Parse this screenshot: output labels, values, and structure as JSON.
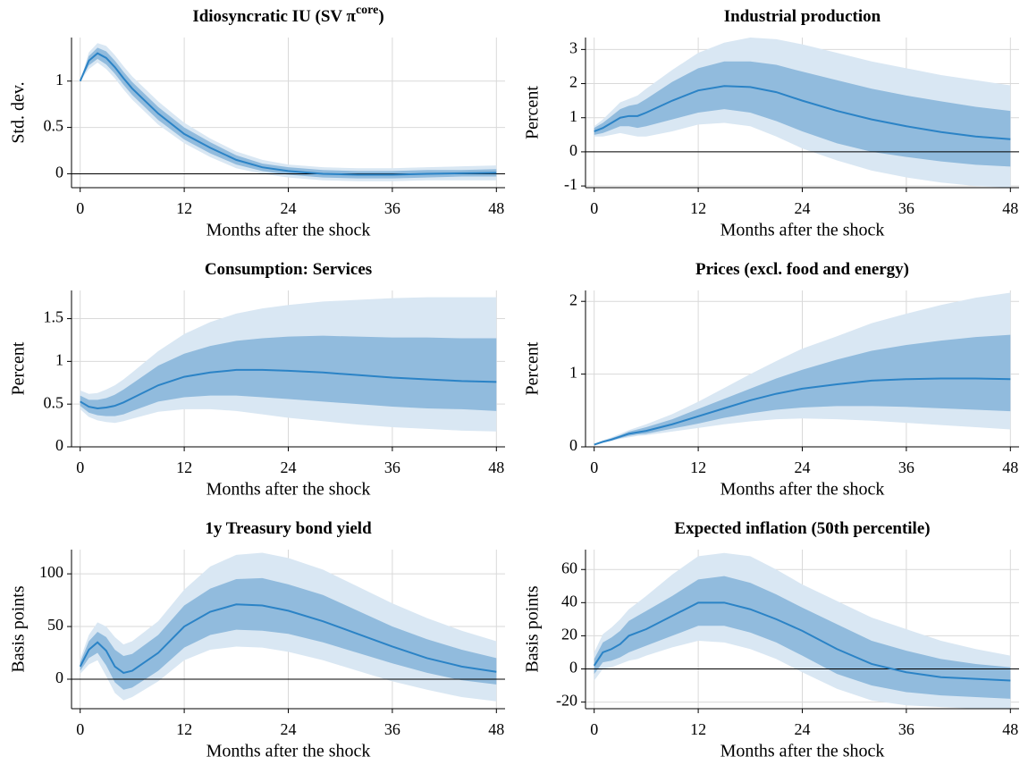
{
  "chart_data": [
    {
      "type": "line",
      "title": "Idiosyncratic IU (SV π",
      "title_sup": "core",
      "title_end": ")",
      "ylabel": "Std. dev.",
      "xlabel": "Months after the shock",
      "x": [
        0,
        1,
        2,
        3,
        4,
        5,
        6,
        9,
        12,
        15,
        18,
        21,
        24,
        28,
        32,
        36,
        40,
        44,
        48
      ],
      "xlim": [
        -1,
        49
      ],
      "xticks": [
        0,
        12,
        24,
        36,
        48
      ],
      "ylim": [
        -0.15,
        1.47
      ],
      "yticks": [
        0,
        0.5,
        1
      ],
      "grid": true,
      "zeroline": true,
      "bands": [
        {
          "color": "#d9e7f3",
          "lower": [
            1.0,
            1.13,
            1.2,
            1.13,
            1.03,
            0.91,
            0.8,
            0.53,
            0.33,
            0.18,
            0.06,
            0.0,
            -0.04,
            -0.07,
            -0.08,
            -0.08,
            -0.07,
            -0.07,
            -0.07
          ],
          "upper": [
            1.0,
            1.31,
            1.41,
            1.38,
            1.28,
            1.16,
            1.05,
            0.78,
            0.55,
            0.38,
            0.24,
            0.15,
            0.1,
            0.07,
            0.06,
            0.06,
            0.07,
            0.08,
            0.09
          ]
        },
        {
          "color": "#91bbdd",
          "lower": [
            1.0,
            1.17,
            1.24,
            1.18,
            1.08,
            0.96,
            0.85,
            0.58,
            0.37,
            0.22,
            0.1,
            0.03,
            -0.01,
            -0.04,
            -0.05,
            -0.05,
            -0.04,
            -0.03,
            -0.03
          ],
          "upper": [
            1.0,
            1.27,
            1.36,
            1.32,
            1.22,
            1.1,
            0.99,
            0.72,
            0.5,
            0.34,
            0.2,
            0.11,
            0.07,
            0.04,
            0.03,
            0.03,
            0.04,
            0.04,
            0.05
          ]
        }
      ],
      "series": [
        {
          "color": "#2b83c6",
          "values": [
            1.0,
            1.22,
            1.3,
            1.25,
            1.15,
            1.03,
            0.92,
            0.65,
            0.43,
            0.28,
            0.15,
            0.07,
            0.03,
            0.0,
            -0.01,
            -0.01,
            0.0,
            0.005,
            0.01
          ]
        }
      ]
    },
    {
      "type": "line",
      "title": "Industrial production",
      "ylabel": "Percent",
      "xlabel": "Months after the shock",
      "x": [
        0,
        1,
        2,
        3,
        4,
        5,
        6,
        9,
        12,
        15,
        18,
        21,
        24,
        28,
        32,
        36,
        40,
        44,
        48
      ],
      "xlim": [
        -1,
        49
      ],
      "xticks": [
        0,
        12,
        24,
        36,
        48
      ],
      "ylim": [
        -1.05,
        3.35
      ],
      "yticks": [
        -1,
        0,
        1,
        2,
        3
      ],
      "grid": true,
      "zeroline": true,
      "bands": [
        {
          "color": "#d9e7f3",
          "lower": [
            0.45,
            0.45,
            0.5,
            0.55,
            0.5,
            0.45,
            0.45,
            0.6,
            0.8,
            0.85,
            0.75,
            0.45,
            0.1,
            -0.25,
            -0.55,
            -0.75,
            -0.9,
            -1.0,
            -1.05
          ],
          "upper": [
            0.75,
            0.95,
            1.2,
            1.45,
            1.55,
            1.65,
            1.85,
            2.4,
            2.9,
            3.2,
            3.35,
            3.3,
            3.15,
            2.9,
            2.65,
            2.45,
            2.25,
            2.1,
            1.95
          ]
        },
        {
          "color": "#91bbdd",
          "lower": [
            0.5,
            0.55,
            0.65,
            0.75,
            0.75,
            0.7,
            0.75,
            0.95,
            1.15,
            1.25,
            1.15,
            0.9,
            0.6,
            0.25,
            0.0,
            -0.15,
            -0.28,
            -0.38,
            -0.43
          ],
          "upper": [
            0.7,
            0.85,
            1.05,
            1.25,
            1.35,
            1.4,
            1.55,
            2.05,
            2.45,
            2.65,
            2.65,
            2.55,
            2.35,
            2.1,
            1.85,
            1.65,
            1.48,
            1.32,
            1.2
          ]
        }
      ],
      "series": [
        {
          "color": "#2b83c6",
          "values": [
            0.6,
            0.7,
            0.85,
            1.0,
            1.05,
            1.05,
            1.15,
            1.5,
            1.8,
            1.93,
            1.9,
            1.75,
            1.5,
            1.2,
            0.95,
            0.75,
            0.58,
            0.45,
            0.37
          ]
        }
      ]
    },
    {
      "type": "line",
      "title": "Consumption: Services",
      "ylabel": "Percent",
      "xlabel": "Months after the shock",
      "x": [
        0,
        1,
        2,
        3,
        4,
        5,
        6,
        9,
        12,
        15,
        18,
        21,
        24,
        28,
        32,
        36,
        40,
        44,
        48
      ],
      "xlim": [
        -1,
        49
      ],
      "xticks": [
        0,
        12,
        24,
        36,
        48
      ],
      "ylim": [
        0,
        1.83
      ],
      "yticks": [
        0,
        0.5,
        1,
        1.5
      ],
      "grid": true,
      "zeroline": true,
      "bands": [
        {
          "color": "#d9e7f3",
          "lower": [
            0.44,
            0.35,
            0.31,
            0.29,
            0.28,
            0.3,
            0.33,
            0.41,
            0.44,
            0.44,
            0.42,
            0.38,
            0.34,
            0.3,
            0.26,
            0.23,
            0.21,
            0.19,
            0.18
          ],
          "upper": [
            0.66,
            0.62,
            0.63,
            0.67,
            0.72,
            0.79,
            0.87,
            1.12,
            1.32,
            1.46,
            1.56,
            1.62,
            1.66,
            1.7,
            1.72,
            1.74,
            1.75,
            1.75,
            1.75
          ]
        },
        {
          "color": "#91bbdd",
          "lower": [
            0.48,
            0.4,
            0.37,
            0.36,
            0.36,
            0.38,
            0.42,
            0.53,
            0.58,
            0.6,
            0.6,
            0.58,
            0.56,
            0.53,
            0.5,
            0.47,
            0.45,
            0.44,
            0.42
          ],
          "upper": [
            0.6,
            0.55,
            0.55,
            0.57,
            0.61,
            0.67,
            0.74,
            0.95,
            1.09,
            1.18,
            1.24,
            1.27,
            1.29,
            1.3,
            1.29,
            1.28,
            1.28,
            1.27,
            1.27
          ]
        }
      ],
      "series": [
        {
          "color": "#2b83c6",
          "values": [
            0.53,
            0.47,
            0.45,
            0.46,
            0.48,
            0.52,
            0.57,
            0.72,
            0.82,
            0.87,
            0.9,
            0.9,
            0.89,
            0.87,
            0.84,
            0.81,
            0.79,
            0.77,
            0.76
          ]
        }
      ]
    },
    {
      "type": "line",
      "title": "Prices (excl. food and energy)",
      "ylabel": "Percent",
      "xlabel": "Months after the shock",
      "x": [
        0,
        1,
        2,
        3,
        4,
        5,
        6,
        9,
        12,
        15,
        18,
        21,
        24,
        28,
        32,
        36,
        40,
        44,
        48
      ],
      "xlim": [
        -1,
        49
      ],
      "xticks": [
        0,
        12,
        24,
        36,
        48
      ],
      "ylim": [
        0,
        2.15
      ],
      "yticks": [
        0,
        1,
        2
      ],
      "grid": true,
      "zeroline": true,
      "bands": [
        {
          "color": "#d9e7f3",
          "lower": [
            0.02,
            0.05,
            0.08,
            0.11,
            0.13,
            0.15,
            0.16,
            0.21,
            0.26,
            0.31,
            0.35,
            0.38,
            0.39,
            0.38,
            0.36,
            0.33,
            0.3,
            0.27,
            0.24
          ],
          "upper": [
            0.04,
            0.09,
            0.13,
            0.18,
            0.23,
            0.27,
            0.31,
            0.45,
            0.62,
            0.81,
            1.0,
            1.18,
            1.35,
            1.52,
            1.7,
            1.83,
            1.95,
            2.05,
            2.12
          ]
        },
        {
          "color": "#91bbdd",
          "lower": [
            0.03,
            0.06,
            0.09,
            0.12,
            0.15,
            0.17,
            0.18,
            0.25,
            0.32,
            0.4,
            0.46,
            0.51,
            0.54,
            0.56,
            0.56,
            0.55,
            0.53,
            0.51,
            0.49
          ],
          "upper": [
            0.03,
            0.08,
            0.12,
            0.16,
            0.21,
            0.24,
            0.27,
            0.38,
            0.52,
            0.66,
            0.8,
            0.94,
            1.06,
            1.2,
            1.32,
            1.4,
            1.46,
            1.51,
            1.54
          ]
        }
      ],
      "series": [
        {
          "color": "#2b83c6",
          "values": [
            0.03,
            0.07,
            0.1,
            0.14,
            0.18,
            0.2,
            0.22,
            0.31,
            0.42,
            0.53,
            0.64,
            0.73,
            0.8,
            0.86,
            0.91,
            0.93,
            0.94,
            0.94,
            0.93
          ]
        }
      ]
    },
    {
      "type": "line",
      "title": "1y Treasury bond yield",
      "ylabel": "Basis points",
      "xlabel": "Months after the shock",
      "x": [
        0,
        1,
        2,
        3,
        4,
        5,
        6,
        9,
        12,
        15,
        18,
        21,
        24,
        28,
        32,
        36,
        40,
        44,
        48
      ],
      "xlim": [
        -1,
        49
      ],
      "xticks": [
        0,
        12,
        24,
        36,
        48
      ],
      "ylim": [
        -28,
        123
      ],
      "yticks": [
        0,
        50,
        100
      ],
      "grid": true,
      "zeroline": true,
      "bands": [
        {
          "color": "#d9e7f3",
          "lower": [
            5,
            14,
            18,
            3,
            -13,
            -20,
            -17,
            -2,
            18,
            28,
            31,
            30,
            26,
            18,
            8,
            -2,
            -10,
            -17,
            -21
          ],
          "upper": [
            19,
            42,
            54,
            50,
            40,
            33,
            36,
            55,
            85,
            107,
            118,
            120,
            115,
            104,
            88,
            72,
            58,
            46,
            36
          ]
        },
        {
          "color": "#91bbdd",
          "lower": [
            8,
            20,
            25,
            13,
            -3,
            -10,
            -8,
            8,
            30,
            42,
            47,
            46,
            43,
            35,
            25,
            15,
            6,
            -1,
            -5
          ],
          "upper": [
            16,
            36,
            45,
            40,
            28,
            22,
            24,
            42,
            70,
            86,
            95,
            96,
            90,
            80,
            65,
            50,
            38,
            28,
            20
          ]
        }
      ],
      "series": [
        {
          "color": "#2b83c6",
          "values": [
            12,
            28,
            35,
            27,
            12,
            6,
            8,
            25,
            50,
            64,
            71,
            70,
            65,
            55,
            43,
            31,
            20,
            12,
            7
          ]
        }
      ]
    },
    {
      "type": "line",
      "title": "Expected inflation (50th percentile)",
      "ylabel": "Basis points",
      "xlabel": "Months after the shock",
      "x": [
        0,
        1,
        2,
        3,
        4,
        5,
        6,
        9,
        12,
        15,
        18,
        21,
        24,
        28,
        32,
        36,
        40,
        44,
        48
      ],
      "xlim": [
        -1,
        49
      ],
      "xticks": [
        0,
        12,
        24,
        36,
        48
      ],
      "ylim": [
        -24,
        72
      ],
      "yticks": [
        -20,
        0,
        20,
        40,
        60
      ],
      "grid": true,
      "zeroline": true,
      "bands": [
        {
          "color": "#d9e7f3",
          "lower": [
            -7,
            0,
            1,
            3,
            5,
            6,
            8,
            13,
            17,
            16,
            12,
            6,
            -2,
            -12,
            -19,
            -22,
            -23,
            -24,
            -24
          ],
          "upper": [
            10,
            21,
            25,
            30,
            36,
            40,
            44,
            57,
            68,
            70,
            68,
            60,
            51,
            41,
            31,
            24,
            17,
            12,
            8
          ]
        },
        {
          "color": "#91bbdd",
          "lower": [
            -3,
            4,
            5,
            7,
            10,
            12,
            14,
            20,
            26,
            26,
            22,
            16,
            8,
            -3,
            -10,
            -14,
            -16,
            -17,
            -18
          ],
          "upper": [
            6,
            16,
            19,
            23,
            29,
            32,
            35,
            44,
            54,
            56,
            52,
            45,
            37,
            27,
            17,
            11,
            6,
            3,
            1
          ]
        }
      ],
      "series": [
        {
          "color": "#2b83c6",
          "values": [
            2,
            10,
            12,
            15,
            20,
            22,
            24,
            32,
            40,
            40,
            36,
            30,
            23,
            12,
            3,
            -2,
            -5,
            -6,
            -7
          ]
        }
      ]
    }
  ]
}
